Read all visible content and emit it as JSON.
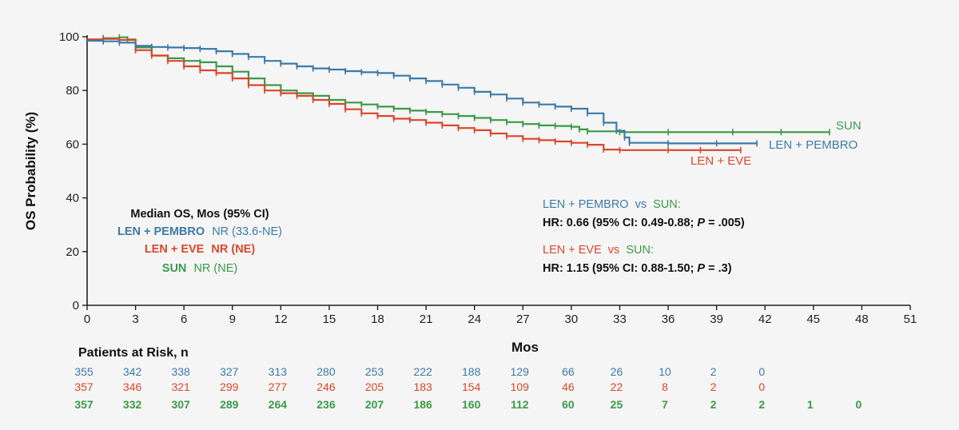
{
  "chart_data": {
    "type": "line",
    "ylabel": "OS Probability (%)",
    "xlabel": "Mos",
    "xlim": [
      0,
      51
    ],
    "ylim": [
      0,
      100
    ],
    "x_ticks": [
      0,
      3,
      6,
      9,
      12,
      15,
      18,
      21,
      24,
      27,
      30,
      33,
      36,
      39,
      42,
      45,
      48,
      51
    ],
    "y_ticks": [
      0,
      20,
      40,
      60,
      80,
      100
    ],
    "grid": false,
    "series": [
      {
        "name": "LEN + PEMBRO",
        "color": "#3d7aa8",
        "points": [
          [
            0,
            98.5
          ],
          [
            1,
            98.3
          ],
          [
            2,
            97.8
          ],
          [
            3,
            96.6
          ],
          [
            4,
            96.2
          ],
          [
            5,
            96
          ],
          [
            6,
            95.8
          ],
          [
            7,
            95.5
          ],
          [
            8,
            94.6
          ],
          [
            9,
            93.6
          ],
          [
            10,
            92.5
          ],
          [
            11,
            91
          ],
          [
            12,
            90
          ],
          [
            13,
            89
          ],
          [
            14,
            88.2
          ],
          [
            15,
            87.8
          ],
          [
            16,
            87.2
          ],
          [
            17,
            86.8
          ],
          [
            18,
            86.5
          ],
          [
            19,
            85.5
          ],
          [
            20,
            84.5
          ],
          [
            21,
            83.5
          ],
          [
            22,
            82.2
          ],
          [
            23,
            81
          ],
          [
            24,
            79.5
          ],
          [
            25,
            78.5
          ],
          [
            26,
            77
          ],
          [
            27,
            75.5
          ],
          [
            28,
            74.8
          ],
          [
            29,
            74
          ],
          [
            30,
            73.2
          ],
          [
            31,
            71.5
          ],
          [
            32,
            68
          ],
          [
            32.8,
            65
          ],
          [
            33.3,
            62.5
          ],
          [
            33.6,
            60.5
          ],
          [
            36,
            60.3
          ],
          [
            39,
            60.3
          ],
          [
            41.5,
            60.3
          ]
        ]
      },
      {
        "name": "LEN + EVE",
        "color": "#d9472b",
        "points": [
          [
            0,
            99
          ],
          [
            1,
            99.2
          ],
          [
            2,
            98.8
          ],
          [
            3,
            95
          ],
          [
            4,
            93
          ],
          [
            5,
            91
          ],
          [
            6,
            89
          ],
          [
            7,
            87.5
          ],
          [
            8,
            86.5
          ],
          [
            9,
            84.5
          ],
          [
            10,
            82
          ],
          [
            11,
            80
          ],
          [
            12,
            79
          ],
          [
            13,
            78
          ],
          [
            14,
            76.5
          ],
          [
            15,
            75
          ],
          [
            16,
            73
          ],
          [
            17,
            71.5
          ],
          [
            18,
            70.5
          ],
          [
            19,
            69.5
          ],
          [
            20,
            69
          ],
          [
            21,
            68
          ],
          [
            22,
            67
          ],
          [
            23,
            66
          ],
          [
            24,
            65.2
          ],
          [
            25,
            64
          ],
          [
            26,
            63
          ],
          [
            27,
            62
          ],
          [
            28,
            61.5
          ],
          [
            29,
            61
          ],
          [
            30,
            60.5
          ],
          [
            31,
            59.8
          ],
          [
            32,
            58
          ],
          [
            33,
            57.8
          ],
          [
            36,
            57.8
          ],
          [
            38,
            57.8
          ],
          [
            40.5,
            57.8
          ]
        ]
      },
      {
        "name": "SUN",
        "color": "#3b9a48",
        "points": [
          [
            0,
            99
          ],
          [
            1,
            99.5
          ],
          [
            2,
            99.8
          ],
          [
            2.5,
            99
          ],
          [
            3,
            96
          ],
          [
            4,
            93
          ],
          [
            5,
            92
          ],
          [
            6,
            91
          ],
          [
            7,
            90.5
          ],
          [
            8,
            89
          ],
          [
            9,
            87
          ],
          [
            10,
            84.5
          ],
          [
            11,
            82
          ],
          [
            12,
            80
          ],
          [
            13,
            79
          ],
          [
            14,
            78
          ],
          [
            15,
            76.5
          ],
          [
            16,
            75.5
          ],
          [
            17,
            74.8
          ],
          [
            18,
            74
          ],
          [
            19,
            73.2
          ],
          [
            20,
            72.5
          ],
          [
            21,
            72
          ],
          [
            22,
            71.2
          ],
          [
            23,
            70.5
          ],
          [
            24,
            69.8
          ],
          [
            25,
            69
          ],
          [
            26,
            68.2
          ],
          [
            27,
            67.5
          ],
          [
            28,
            67
          ],
          [
            29,
            66.8
          ],
          [
            30,
            66.5
          ],
          [
            30.5,
            65.5
          ],
          [
            31,
            64.8
          ],
          [
            33,
            64.5
          ],
          [
            36,
            64.5
          ],
          [
            40,
            64.5
          ],
          [
            43,
            64.5
          ],
          [
            46,
            64.5
          ]
        ]
      }
    ],
    "series_labels": {
      "sun": "SUN",
      "pembro": "LEN + PEMBRO",
      "eve": "LEN + EVE"
    },
    "risk_table": {
      "title": "Patients at Risk, n",
      "rows": [
        {
          "color": "#3d7aa8",
          "values": [
            "355",
            "342",
            "338",
            "327",
            "313",
            "280",
            "253",
            "222",
            "188",
            "129",
            "66",
            "26",
            "10",
            "2",
            "0"
          ]
        },
        {
          "color": "#d9472b",
          "values": [
            "357",
            "346",
            "321",
            "299",
            "277",
            "246",
            "205",
            "183",
            "154",
            "109",
            "46",
            "22",
            "8",
            "2",
            "0"
          ]
        },
        {
          "color": "#3b9a48",
          "values": [
            "357",
            "332",
            "307",
            "289",
            "264",
            "236",
            "207",
            "186",
            "160",
            "112",
            "60",
            "25",
            "7",
            "2",
            "2",
            "1",
            "0"
          ]
        }
      ]
    }
  },
  "median_box": {
    "title": "Median OS, Mos (95% CI)",
    "rows": [
      {
        "name": "LEN + PEMBRO",
        "value": "NR (33.6-NE)",
        "color": "#3d7aa8"
      },
      {
        "name": "LEN + EVE",
        "value": "NR (NE)",
        "color": "#d9472b"
      },
      {
        "name": "SUN",
        "value": "NR (NE)",
        "color": "#3b9a48"
      }
    ]
  },
  "hr_box": {
    "comparisons": [
      {
        "label_a": "LEN + PEMBRO",
        "label_vs": "vs",
        "label_b": "SUN:",
        "color_a": "#3d7aa8",
        "color_b": "#3b9a48",
        "hr": "HR: 0.66 (95% CI: 0.49-0.88; ",
        "p_label": "P",
        "p_value": " = .005)"
      },
      {
        "label_a": "LEN + EVE",
        "label_vs": "vs",
        "label_b": "SUN:",
        "color_a": "#d9472b",
        "color_b": "#3b9a48",
        "hr": "HR: 1.15 (95% CI: 0.88-1.50; ",
        "p_label": "P",
        "p_value": " = .3)"
      }
    ]
  }
}
